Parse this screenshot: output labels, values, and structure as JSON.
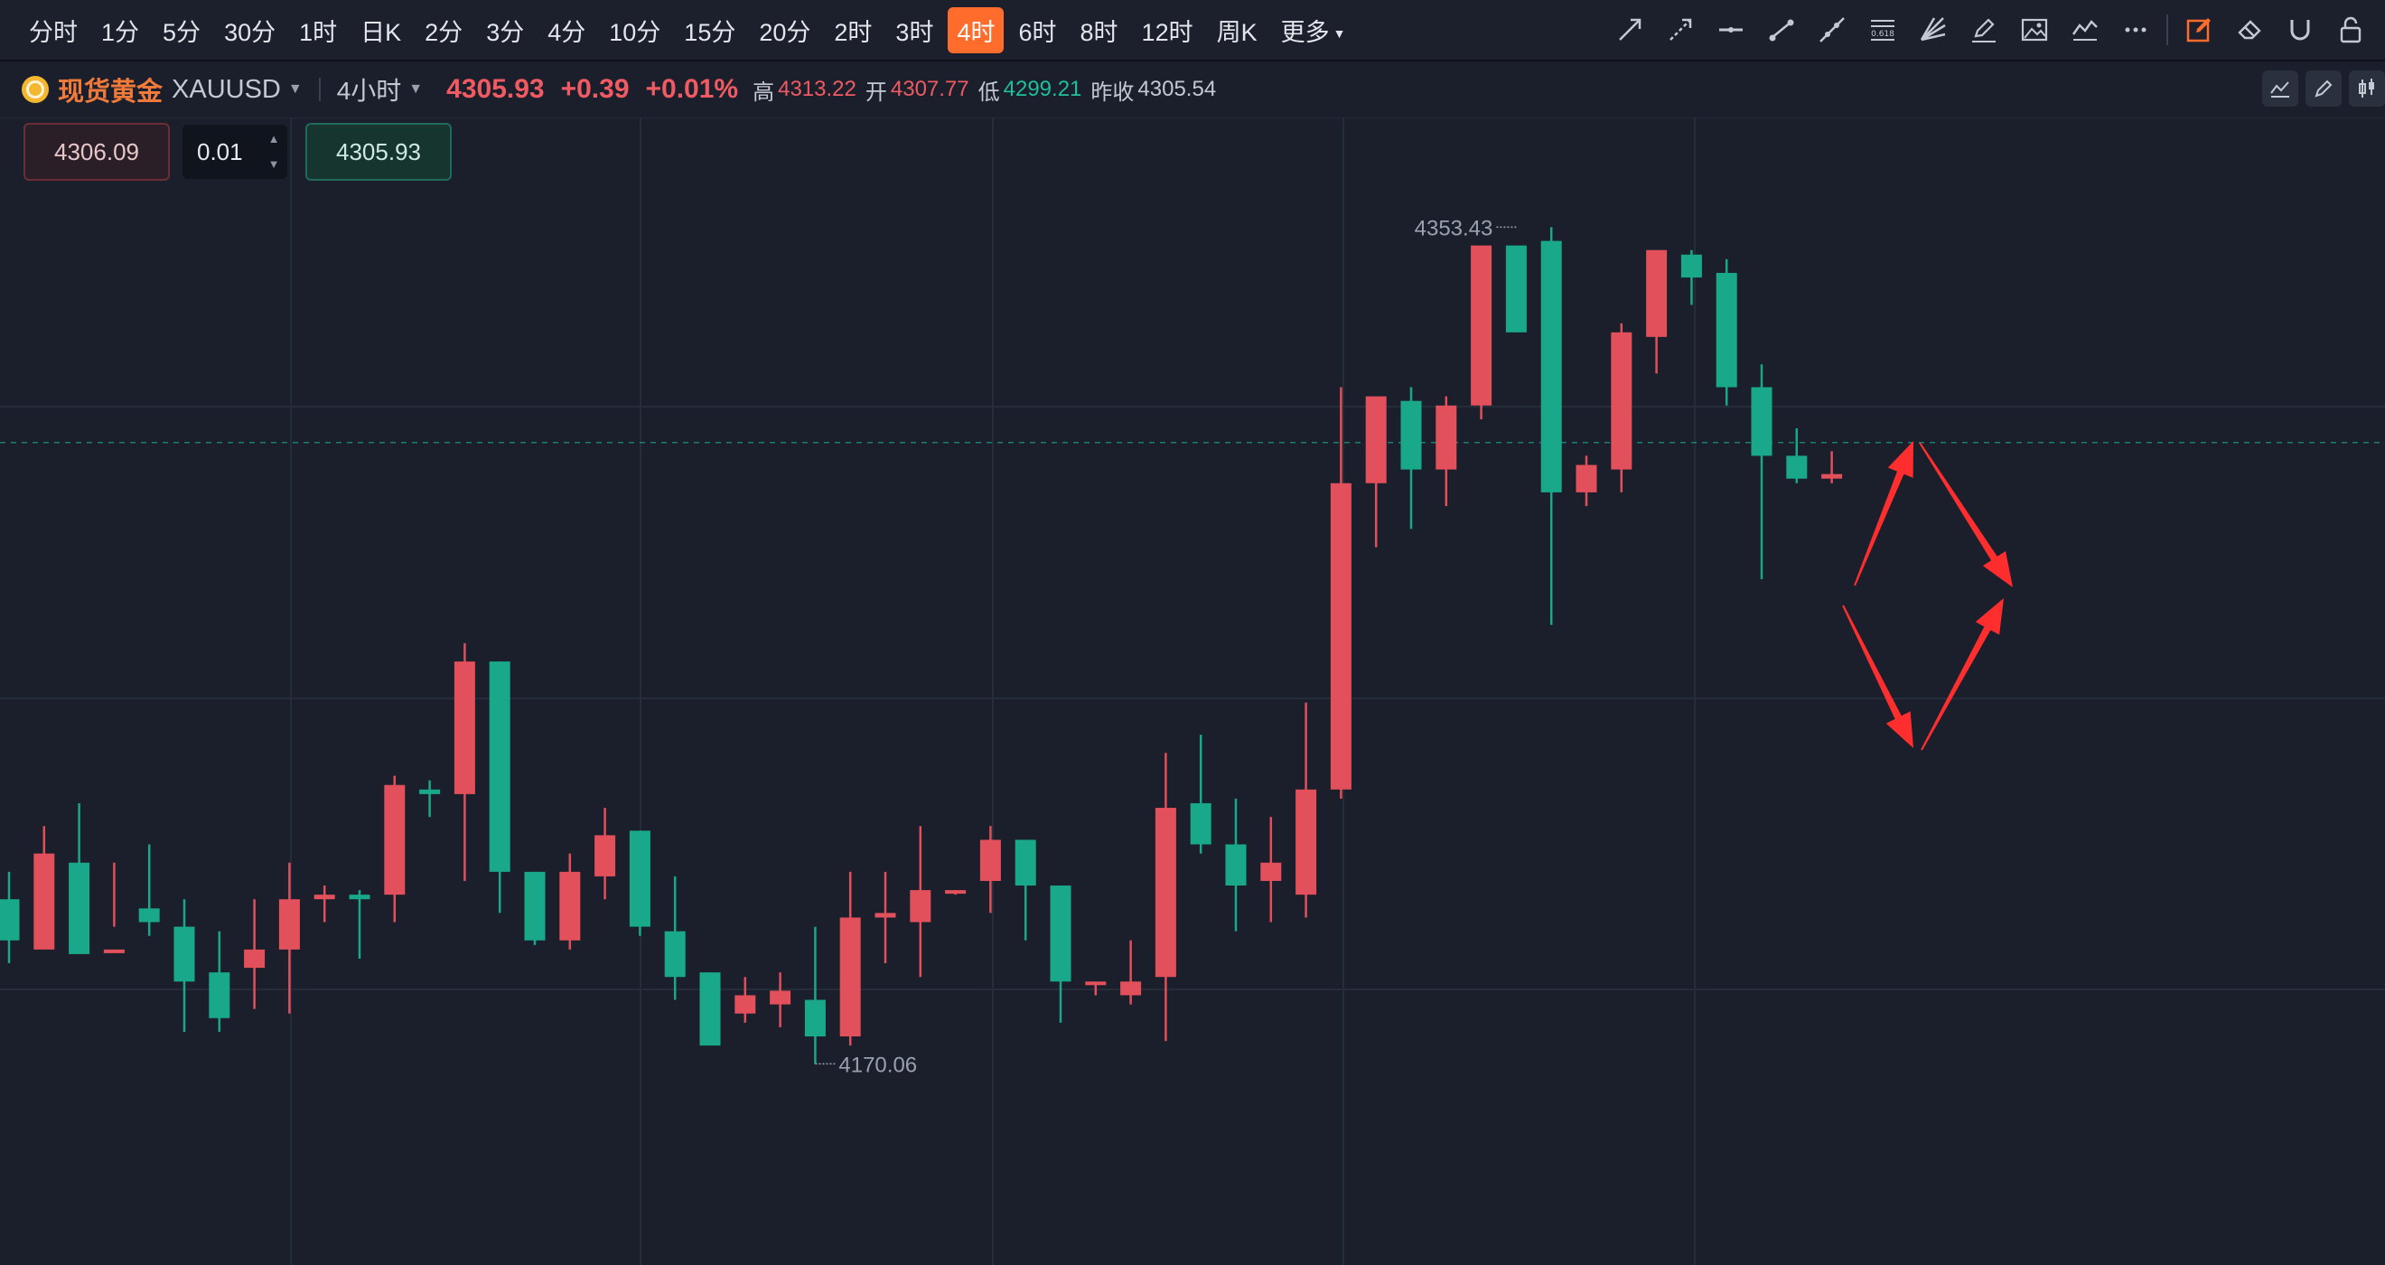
{
  "toolbar": {
    "timeframes": [
      "分时",
      "1分",
      "5分",
      "30分",
      "1时",
      "日K",
      "2分",
      "3分",
      "4分",
      "10分",
      "15分",
      "20分",
      "2时",
      "3时",
      "4时",
      "6时",
      "8时",
      "12时",
      "周K",
      "更多"
    ],
    "active": "4时",
    "tools": [
      "trend-line-icon",
      "ray-icon",
      "horizontal-line-icon",
      "segment-icon",
      "extended-line-icon",
      "fibonacci-icon",
      "fan-icon",
      "pen-icon",
      "image-icon",
      "pattern-icon",
      "more-dots-icon",
      "edit-icon",
      "eraser-icon",
      "magnet-icon",
      "lock-icon"
    ]
  },
  "symbol": {
    "name": "现货黄金",
    "code": "XAUUSD",
    "period": "4小时",
    "price": "4305.93",
    "change": "+0.39",
    "change_pct": "+0.01%",
    "high_label": "高",
    "high": "4313.22",
    "open_label": "开",
    "open": "4307.77",
    "low_label": "低",
    "low": "4299.21",
    "prev_label": "昨收",
    "prev": "4305.54"
  },
  "trade": {
    "sell_price": "4306.09",
    "quantity": "0.01",
    "buy_price": "4305.93"
  },
  "chart_data": {
    "type": "candlestick",
    "up_color": "#e2505b",
    "down_color": "#1aa88b",
    "price_range": [
      4126,
      4377
    ],
    "current_price": 4305.9,
    "high_marker": "4353.43",
    "low_marker": "4170.06",
    "candles": [
      [
        4206,
        4212,
        4197,
        4192
      ],
      [
        4195,
        4222,
        4216,
        4200
      ],
      [
        4214,
        4227,
        4194,
        4195
      ],
      [
        4195,
        4214,
        4195,
        4200
      ],
      [
        4204,
        4218,
        4201,
        4198
      ],
      [
        4200,
        4206,
        4188,
        4177
      ],
      [
        4190,
        4199,
        4180,
        4177
      ],
      [
        4191,
        4206,
        4195,
        4182
      ],
      [
        4195,
        4214,
        4206,
        4181
      ],
      [
        4206,
        4209,
        4207,
        4201
      ],
      [
        4207,
        4208,
        4206,
        4193
      ],
      [
        4207,
        4233,
        4231,
        4201
      ],
      [
        4230,
        4232,
        4229,
        4224
      ],
      [
        4229,
        4262,
        4258,
        4210
      ],
      [
        4258,
        4258,
        4212,
        4203
      ],
      [
        4212,
        4212,
        4197,
        4196
      ],
      [
        4197,
        4216,
        4212,
        4195
      ],
      [
        4211,
        4226,
        4220,
        4206
      ],
      [
        4221,
        4221,
        4200,
        4198
      ],
      [
        4199,
        4211,
        4189,
        4184
      ],
      [
        4190,
        4190,
        4174,
        4175
      ],
      [
        4181,
        4189,
        4185,
        4179
      ],
      [
        4183,
        4190,
        4186,
        4178
      ],
      [
        4184,
        4200,
        4176,
        4170
      ],
      [
        4176,
        4212,
        4202,
        4174
      ],
      [
        4202,
        4212,
        4203,
        4192
      ],
      [
        4201,
        4222,
        4208,
        4189
      ],
      [
        4208,
        4208,
        4208,
        4207
      ],
      [
        4210,
        4222,
        4219,
        4203
      ],
      [
        4219,
        4219,
        4209,
        4197
      ],
      [
        4209,
        4209,
        4188,
        4179
      ],
      [
        4188,
        4188,
        4188,
        4185
      ],
      [
        4185,
        4197,
        4188,
        4183
      ],
      [
        4189,
        4238,
        4226,
        4175
      ],
      [
        4227,
        4242,
        4218,
        4216
      ],
      [
        4218,
        4228,
        4209,
        4199
      ],
      [
        4210,
        4224,
        4214,
        4201
      ],
      [
        4207,
        4249,
        4230,
        4202
      ],
      [
        4230,
        4318,
        4297,
        4228
      ],
      [
        4297,
        4312,
        4316,
        4283
      ],
      [
        4315,
        4318,
        4300,
        4287
      ],
      [
        4300,
        4316,
        4314,
        4292
      ],
      [
        4314,
        4348,
        4349,
        4311
      ],
      [
        4349,
        4350,
        4330,
        4350
      ],
      [
        4350,
        4353,
        4295,
        4266
      ],
      [
        4295,
        4303,
        4301,
        4292
      ],
      [
        4300,
        4332,
        4330,
        4295
      ],
      [
        4329,
        4347,
        4348,
        4321
      ],
      [
        4347,
        4348,
        4342,
        4336
      ],
      [
        4343,
        4346,
        4318,
        4314
      ],
      [
        4318,
        4323,
        4303,
        4276
      ],
      [
        4303,
        4309,
        4298,
        4297
      ],
      [
        4298,
        4304,
        4299,
        4297
      ]
    ]
  }
}
